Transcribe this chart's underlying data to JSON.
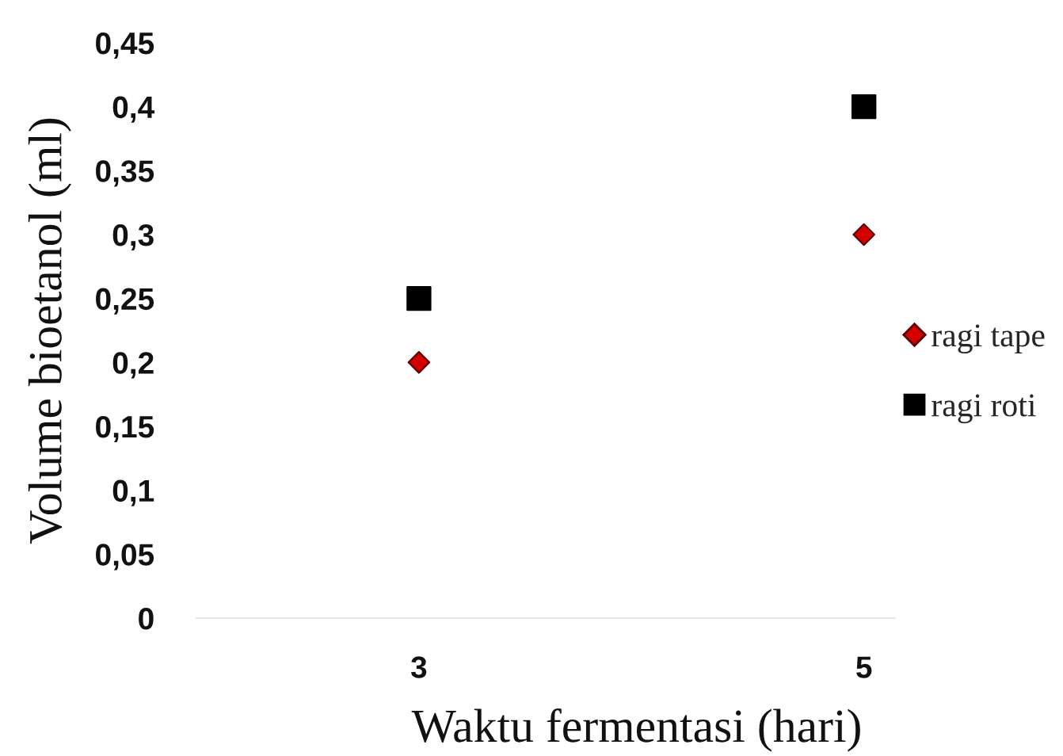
{
  "chart_data": {
    "type": "scatter",
    "xlabel": "Waktu fermentasi (hari)",
    "ylabel": "Volume bioetanol (ml)",
    "categories": [
      "3",
      "5"
    ],
    "series": [
      {
        "name": "ragi tape",
        "color": "#d40000",
        "marker": "diamond",
        "values": [
          0.2,
          0.3
        ]
      },
      {
        "name": "ragi roti",
        "color": "#000000",
        "marker": "square",
        "values": [
          0.25,
          0.4
        ]
      }
    ],
    "ylim": [
      0,
      0.45
    ],
    "yticks": [
      0,
      {
        "value": 0.05,
        "label": "0,05"
      },
      {
        "value": 0.1,
        "label": "0,1"
      },
      {
        "value": 0.15,
        "label": "0,15"
      },
      {
        "value": 0.2,
        "label": "0,2"
      },
      {
        "value": 0.25,
        "label": "0,25"
      },
      {
        "value": 0.3,
        "label": "0,3"
      },
      {
        "value": 0.35,
        "label": "0,35"
      },
      {
        "value": 0.4,
        "label": "0,4"
      },
      {
        "value": 0.45,
        "label": "0,45"
      }
    ],
    "grid": false,
    "legend": "right"
  }
}
